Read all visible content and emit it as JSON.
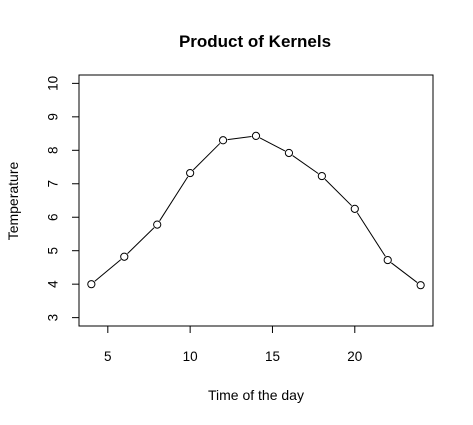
{
  "chart_data": {
    "type": "line",
    "title": "Product of Kernels",
    "xlabel": "Time of the day",
    "ylabel": "Temperature",
    "xlim": [
      3.25,
      24.75
    ],
    "ylim": [
      2.75,
      10.25
    ],
    "x_ticks": [
      5,
      10,
      15,
      20
    ],
    "y_ticks": [
      3,
      4,
      5,
      6,
      7,
      8,
      9,
      10
    ],
    "grid": false,
    "legend": "none",
    "markers": "open-circle",
    "line_color": "#000000",
    "series": [
      {
        "x": [
          4,
          6,
          8,
          10,
          12,
          14,
          16,
          18,
          20,
          22,
          24
        ],
        "y": [
          4.0,
          4.82,
          5.78,
          7.32,
          8.3,
          8.43,
          7.92,
          7.23,
          6.25,
          4.72,
          3.97
        ]
      }
    ]
  }
}
